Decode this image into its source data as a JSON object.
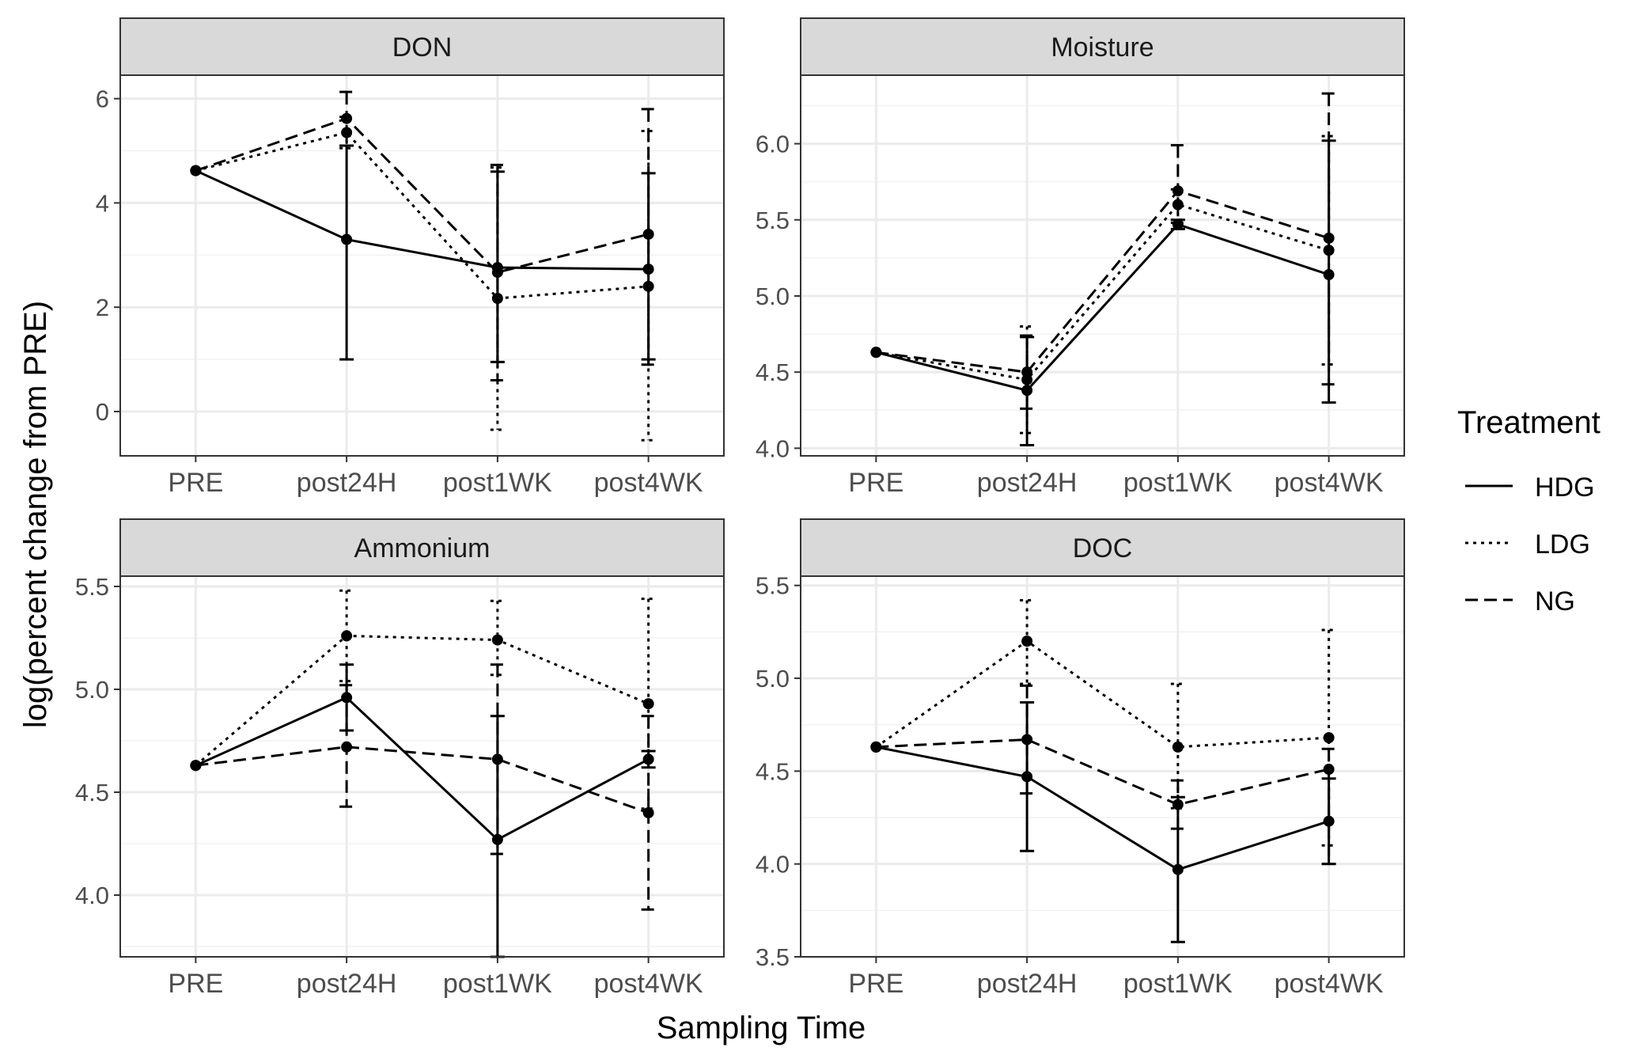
{
  "figure": {
    "x_axis_title": "Sampling Time",
    "y_axis_title": "log(percent change from PRE)"
  },
  "legend": {
    "title": "Treatment",
    "placement": "right",
    "items": [
      {
        "label": "HDG",
        "linetype": "solid"
      },
      {
        "label": "LDG",
        "linetype": "dotted"
      },
      {
        "label": "NG",
        "linetype": "dashed"
      }
    ]
  },
  "colors": {
    "line": "#000000",
    "strip_fill": "#d9d9d9",
    "panel_border": "#333333",
    "grid_major": "#ebebeb",
    "grid_minor": "#f2f2f2",
    "tick_label": "#4d4d4d"
  },
  "chart_data": [
    {
      "type": "line",
      "title": "DON",
      "categories": [
        "PRE",
        "post24H",
        "post1WK",
        "post4WK"
      ],
      "ylim": [
        -0.85,
        6.45
      ],
      "yticks": [
        0,
        2,
        4,
        6
      ],
      "yticks_minor": [
        1,
        3,
        5
      ],
      "grid": true,
      "series": [
        {
          "name": "HDG",
          "values": [
            4.62,
            3.3,
            2.76,
            2.73
          ],
          "err_low": [
            null,
            1.0,
            0.95,
            1.0
          ],
          "err_high": [
            null,
            5.1,
            4.6,
            4.57
          ]
        },
        {
          "name": "LDG",
          "values": [
            4.62,
            5.35,
            2.17,
            2.4
          ],
          "err_low": [
            null,
            5.05,
            -0.35,
            -0.55
          ],
          "err_high": [
            null,
            5.65,
            4.68,
            5.38
          ]
        },
        {
          "name": "NG",
          "values": [
            4.62,
            5.62,
            2.67,
            3.4
          ],
          "err_low": [
            null,
            5.1,
            0.6,
            0.9
          ],
          "err_high": [
            null,
            6.13,
            4.73,
            5.8
          ]
        }
      ]
    },
    {
      "type": "line",
      "title": "Moisture",
      "categories": [
        "PRE",
        "post24H",
        "post1WK",
        "post4WK"
      ],
      "ylim": [
        3.95,
        6.45
      ],
      "yticks": [
        4.0,
        4.5,
        5.0,
        5.5,
        6.0
      ],
      "yticks_minor": [
        4.25,
        4.75,
        5.25,
        5.75,
        6.25
      ],
      "grid": true,
      "series": [
        {
          "name": "HDG",
          "values": [
            4.63,
            4.38,
            5.47,
            5.14
          ],
          "err_low": [
            null,
            4.02,
            5.44,
            4.3
          ],
          "err_high": [
            null,
            4.73,
            5.5,
            6.02
          ]
        },
        {
          "name": "LDG",
          "values": [
            4.63,
            4.45,
            5.6,
            5.3
          ],
          "err_low": [
            null,
            4.1,
            5.5,
            4.55
          ],
          "err_high": [
            null,
            4.8,
            5.7,
            6.05
          ]
        },
        {
          "name": "NG",
          "values": [
            4.63,
            4.5,
            5.69,
            5.38
          ],
          "err_low": [
            null,
            4.26,
            5.48,
            4.42
          ],
          "err_high": [
            null,
            4.74,
            5.99,
            6.33
          ]
        }
      ]
    },
    {
      "type": "line",
      "title": "Ammonium",
      "categories": [
        "PRE",
        "post24H",
        "post1WK",
        "post4WK"
      ],
      "ylim": [
        3.7,
        5.55
      ],
      "yticks": [
        4.0,
        4.5,
        5.0,
        5.5
      ],
      "yticks_minor": [
        3.75,
        4.25,
        4.75,
        5.25
      ],
      "grid": true,
      "series": [
        {
          "name": "HDG",
          "values": [
            4.63,
            4.96,
            4.27,
            4.66
          ],
          "err_low": [
            null,
            4.8,
            3.7,
            4.62
          ],
          "err_high": [
            null,
            5.12,
            4.87,
            4.7
          ]
        },
        {
          "name": "LDG",
          "values": [
            4.63,
            5.26,
            5.24,
            4.93
          ],
          "err_low": [
            null,
            5.04,
            5.07,
            4.42
          ],
          "err_high": [
            null,
            5.48,
            5.43,
            5.44
          ]
        },
        {
          "name": "NG",
          "values": [
            4.63,
            4.72,
            4.66,
            4.4
          ],
          "err_low": [
            null,
            4.43,
            4.2,
            3.93
          ],
          "err_high": [
            null,
            5.02,
            5.12,
            4.87
          ]
        }
      ]
    },
    {
      "type": "line",
      "title": "DOC",
      "categories": [
        "PRE",
        "post24H",
        "post1WK",
        "post4WK"
      ],
      "ylim": [
        3.5,
        5.55
      ],
      "yticks": [
        3.5,
        4.0,
        4.5,
        5.0,
        5.5
      ],
      "yticks_minor": [
        3.75,
        4.25,
        4.75,
        5.25
      ],
      "grid": true,
      "series": [
        {
          "name": "HDG",
          "values": [
            4.63,
            4.47,
            3.97,
            4.23
          ],
          "err_low": [
            null,
            4.07,
            3.58,
            4.0
          ],
          "err_high": [
            null,
            4.87,
            4.36,
            4.46
          ]
        },
        {
          "name": "LDG",
          "values": [
            4.63,
            5.2,
            4.63,
            4.68
          ],
          "err_low": [
            null,
            4.97,
            4.3,
            4.1
          ],
          "err_high": [
            null,
            5.42,
            4.97,
            5.26
          ]
        },
        {
          "name": "NG",
          "values": [
            4.63,
            4.67,
            4.32,
            4.51
          ],
          "err_low": [
            null,
            4.38,
            4.19,
            4.0
          ],
          "err_high": [
            null,
            4.96,
            4.45,
            4.62
          ]
        }
      ]
    }
  ]
}
